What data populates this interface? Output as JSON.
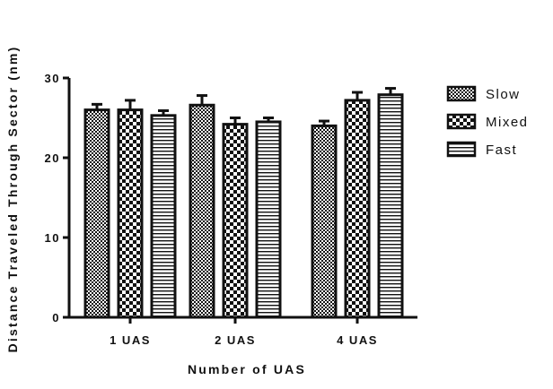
{
  "chart_data": {
    "type": "bar",
    "title": "",
    "xlabel": "Number of UAS",
    "ylabel": "Distance Traveled Through Sector (nm)",
    "ylim": [
      0,
      30
    ],
    "yticks": [
      0,
      10,
      20,
      30
    ],
    "categories": [
      "1 UAS",
      "2 UAS",
      "4 UAS"
    ],
    "series": [
      {
        "name": "Slow",
        "pattern": "dense-checker",
        "values": [
          26.0,
          26.6,
          24.0
        ],
        "errors": [
          0.7,
          1.2,
          0.6
        ]
      },
      {
        "name": "Mixed",
        "pattern": "coarse-checker",
        "values": [
          26.0,
          24.2,
          27.2
        ],
        "errors": [
          1.2,
          0.8,
          1.0
        ]
      },
      {
        "name": "Fast",
        "pattern": "horizontal-lines",
        "values": [
          25.3,
          24.5,
          27.9
        ],
        "errors": [
          0.6,
          0.5,
          0.8
        ]
      }
    ],
    "legend_position": "right",
    "grid": false,
    "colors": {
      "stroke": "#111111",
      "fill": "#ffffff"
    }
  }
}
